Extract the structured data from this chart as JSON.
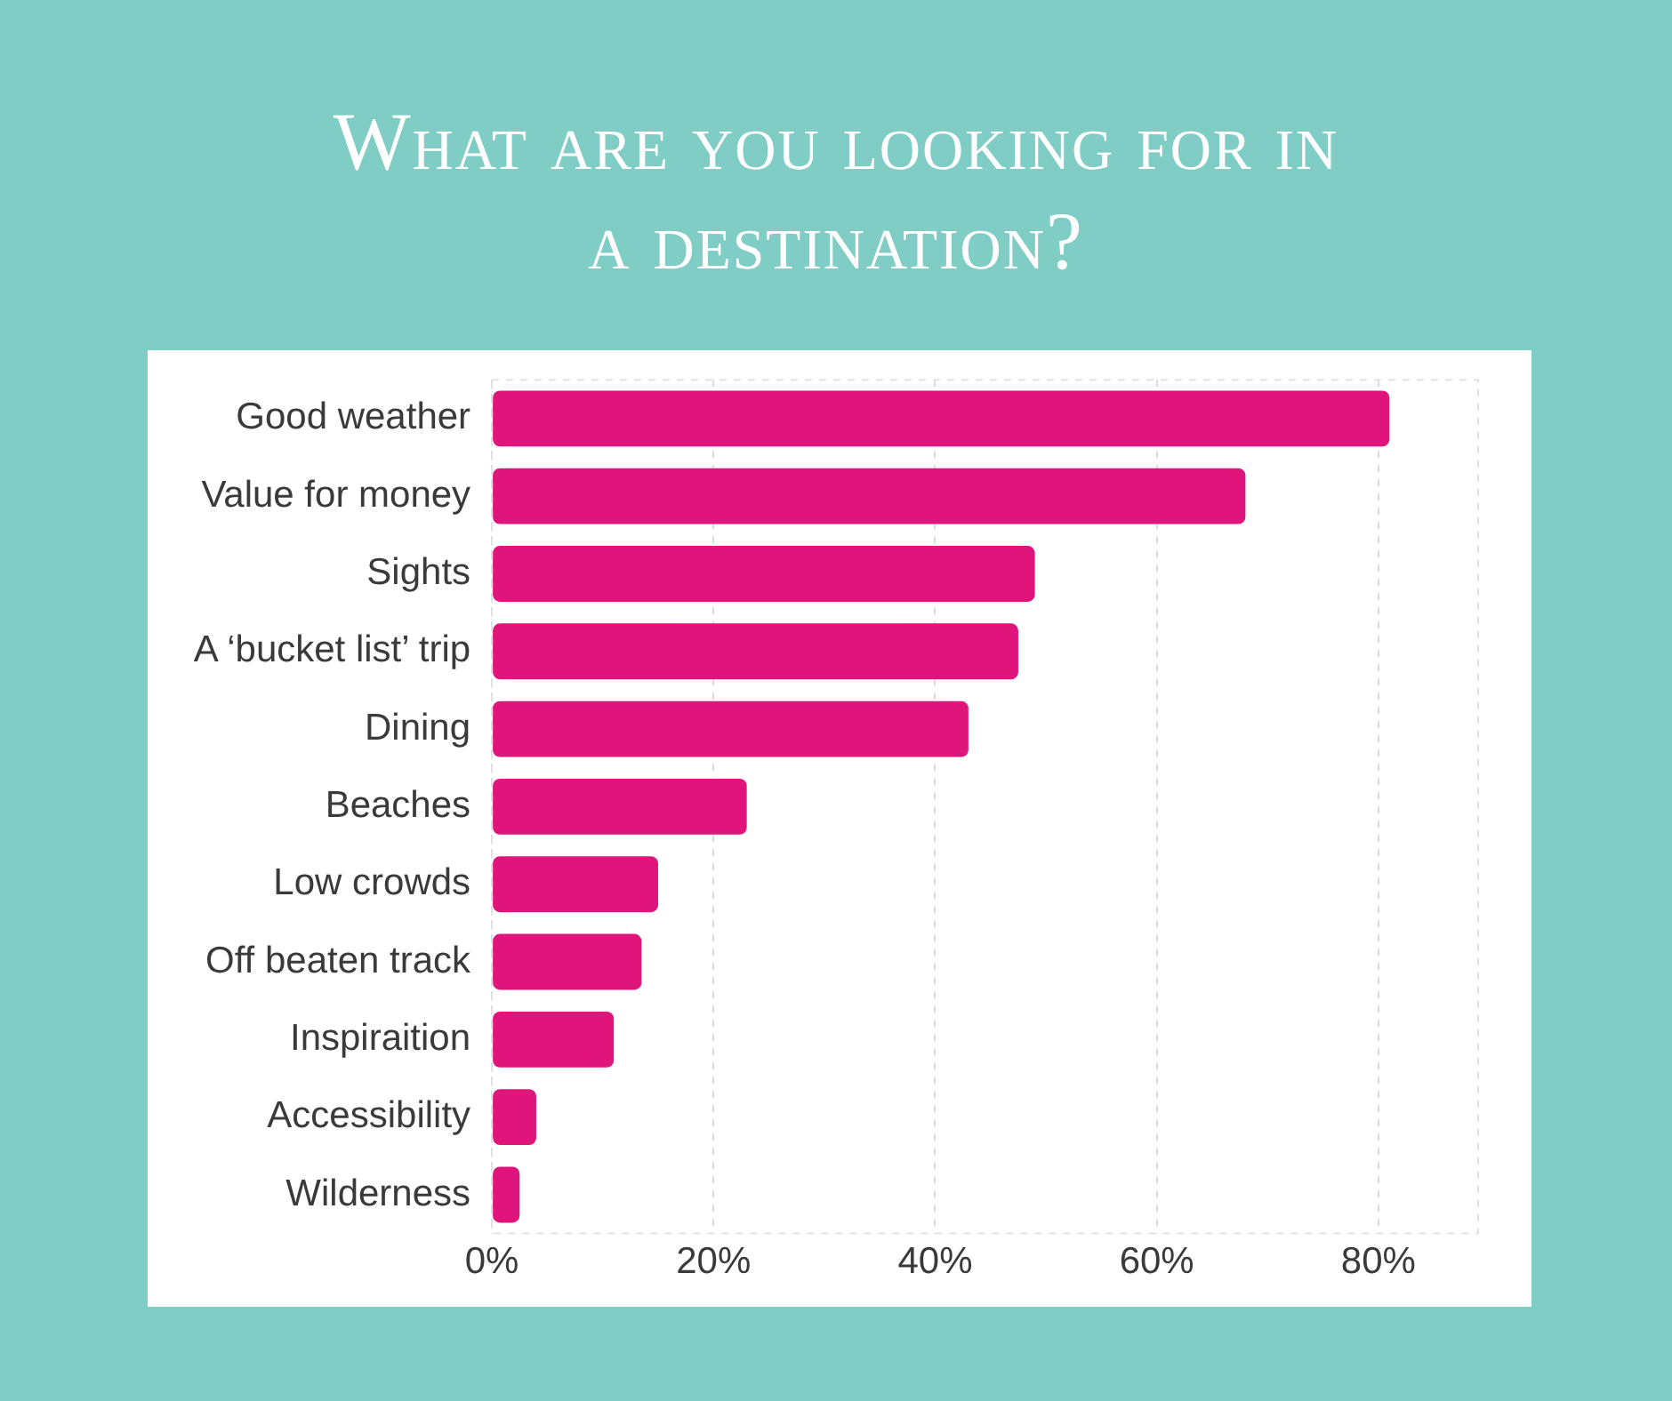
{
  "chart_data": {
    "type": "bar",
    "orientation": "horizontal",
    "title": "What are you looking for in a destination?",
    "categories": [
      "Good weather",
      "Value for money",
      "Sights",
      "A ‘bucket list’ trip",
      "Dining",
      "Beaches",
      "Low crowds",
      "Off beaten track",
      "Inspiraition",
      "Accessibility",
      "Wilderness"
    ],
    "values": [
      81,
      68,
      49,
      47.5,
      43,
      23,
      15,
      13.5,
      11,
      4,
      2.5
    ],
    "color": "#e0157b",
    "xlim": [
      0,
      89
    ],
    "xticks": [
      {
        "value": 0,
        "label": "0%"
      },
      {
        "value": 20,
        "label": "20%"
      },
      {
        "value": 40,
        "label": "40%"
      },
      {
        "value": 60,
        "label": "60%"
      },
      {
        "value": 80,
        "label": "80%"
      }
    ],
    "grid": "x",
    "legend": false
  }
}
